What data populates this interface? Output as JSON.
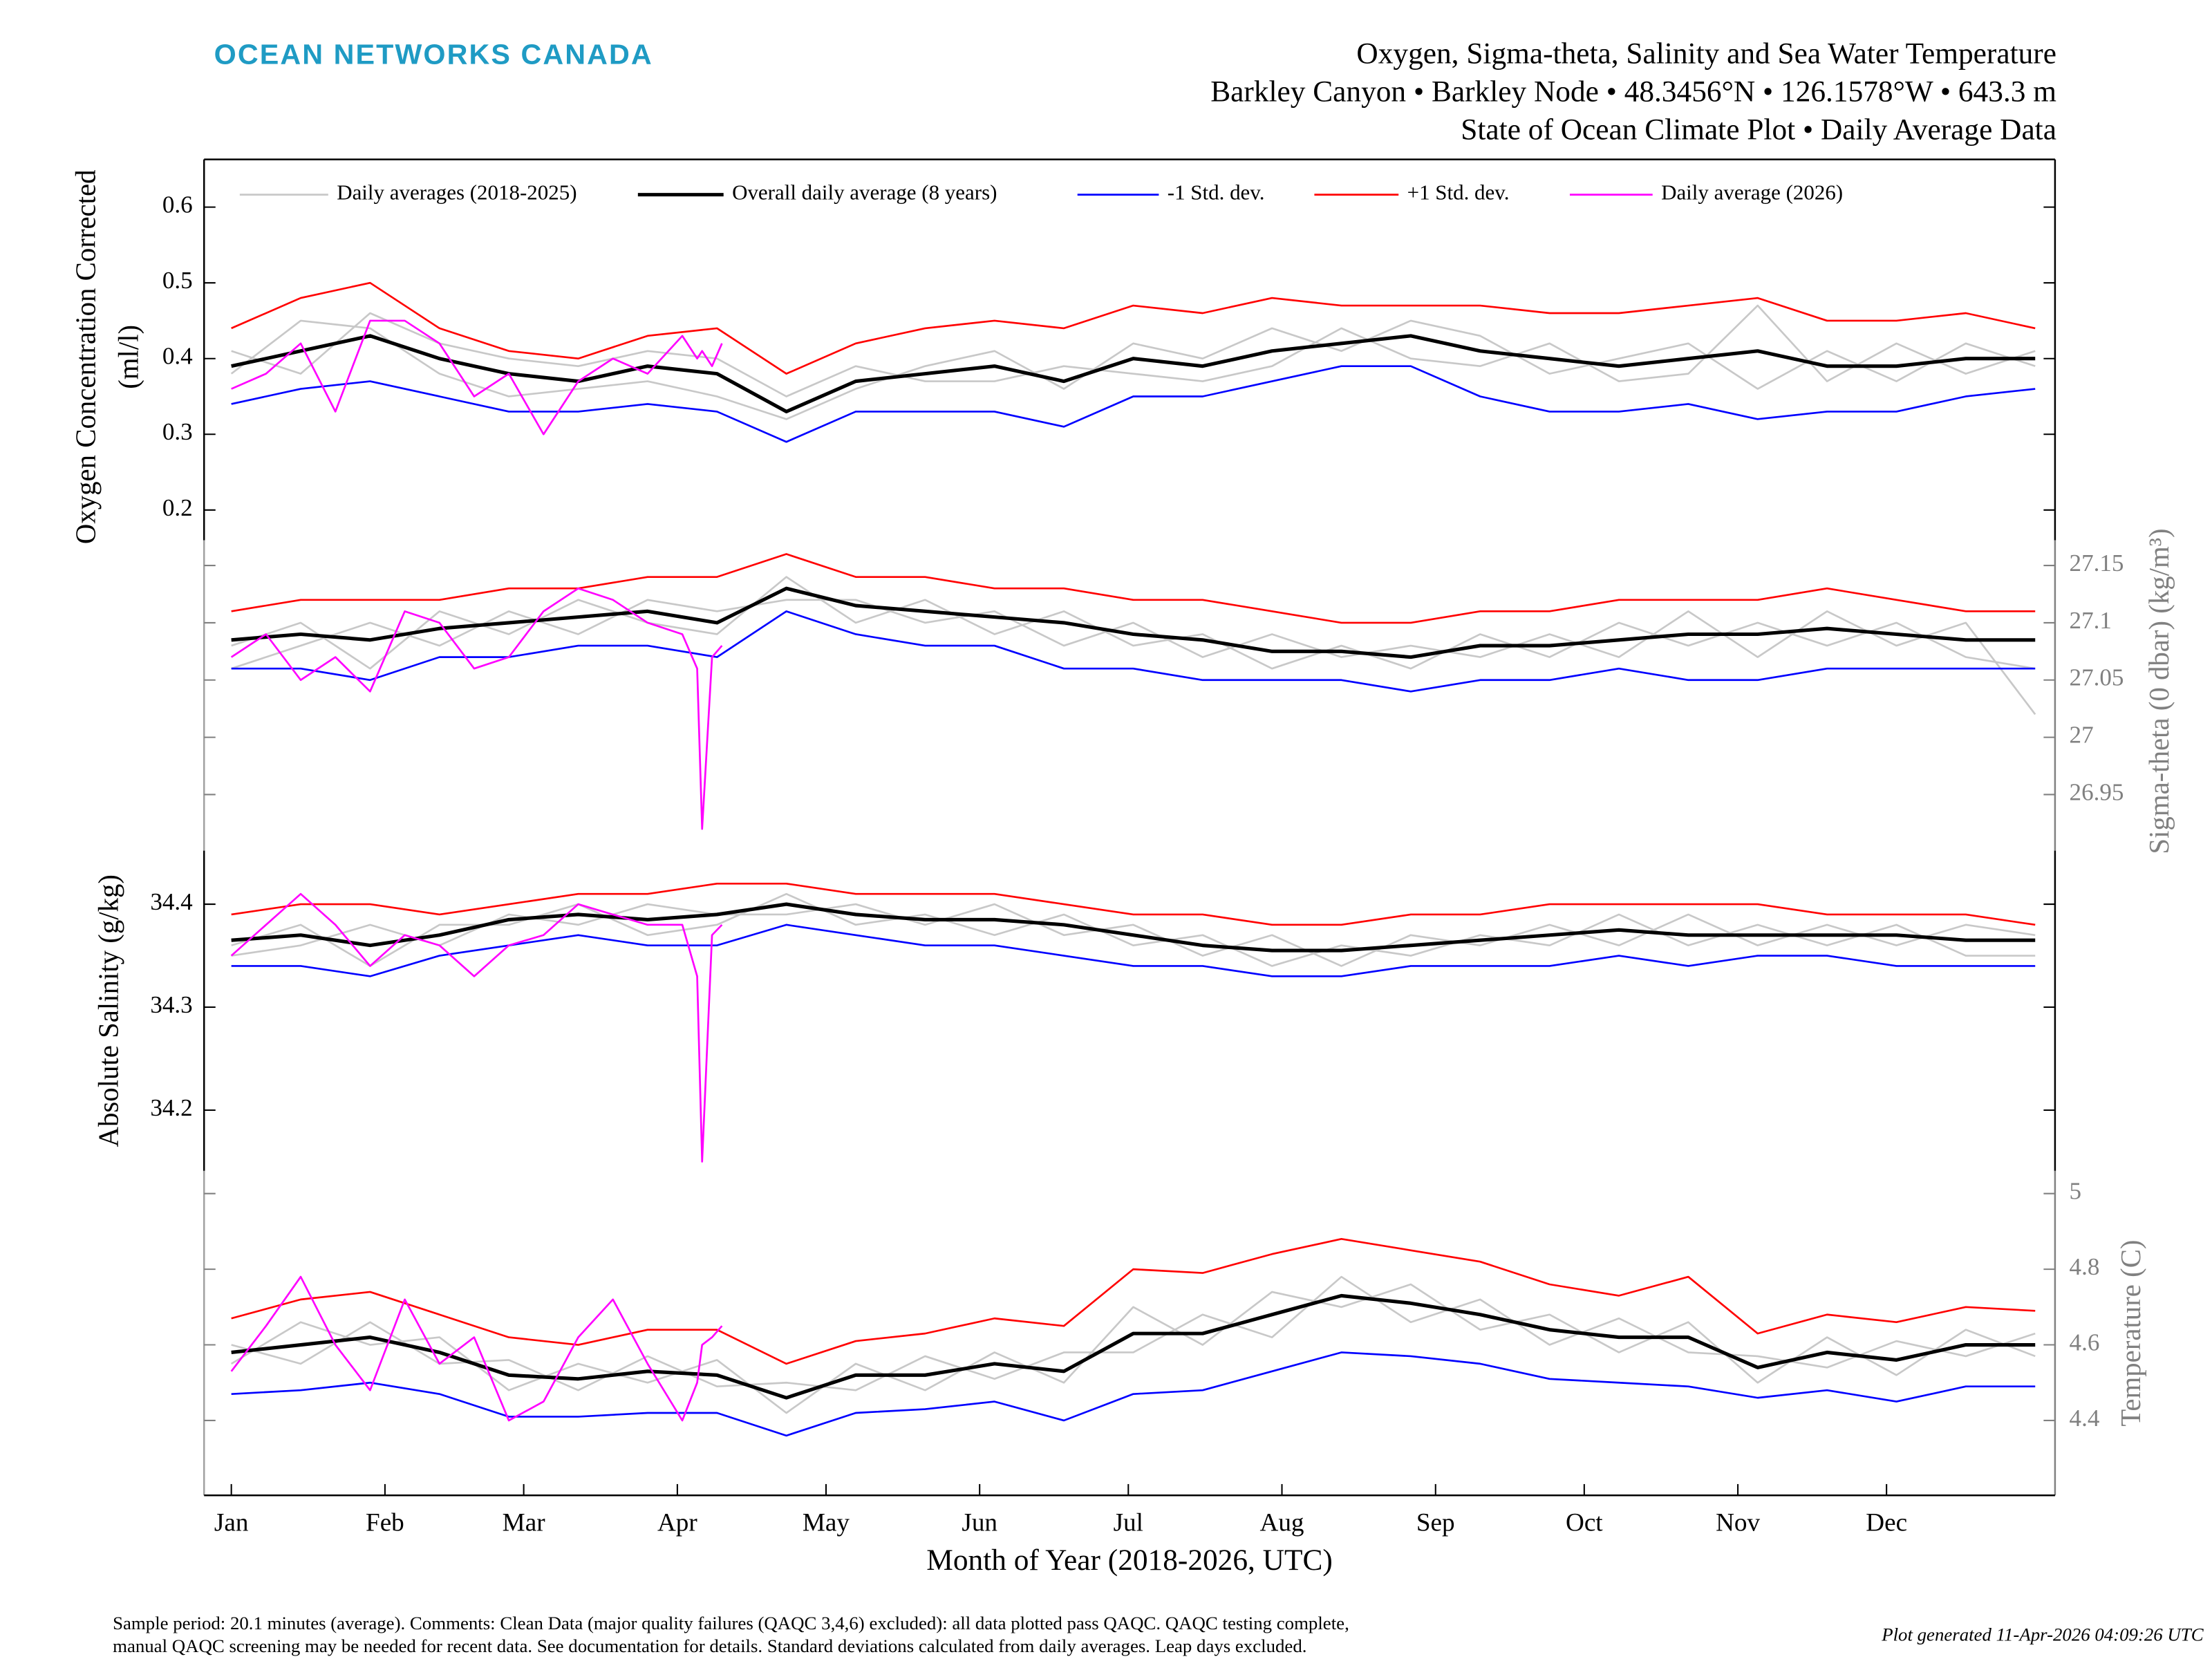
{
  "header": {
    "logo": "OCEAN NETWORKS CANADA",
    "title": "Oxygen, Sigma-theta, Salinity and Sea Water Temperature",
    "subtitle": "Barkley Canyon • Barkley Node • 48.3456°N • 126.1578°W • 643.3 m",
    "subtitle2": "State of Ocean Climate Plot • Daily Average Data"
  },
  "footer": {
    "note_line1": "Sample period: 20.1 minutes (average). Comments: Clean Data (major quality failures (QAQC 3,4,6) excluded): all data plotted pass QAQC. QAQC testing complete,",
    "note_line2": "manual QAQC screening may be needed for recent data. See documentation for details. Standard deviations calculated from daily averages. Leap days excluded.",
    "generated": "Plot generated 11-Apr-2026 04:09:26 UTC"
  },
  "chart_data": [
    {
      "type": "line",
      "ylabel": [
        "Oxygen Concentration Corrected",
        "(ml/l)"
      ],
      "axis_side": "left",
      "x": [
        1,
        15,
        29,
        43,
        57,
        71,
        85,
        99,
        113,
        127,
        141,
        155,
        169,
        183,
        197,
        211,
        225,
        239,
        253,
        267,
        281,
        295,
        309,
        323,
        337,
        351,
        365
      ],
      "xlim": [
        -4.5,
        369
      ],
      "ylim": [
        0.16,
        0.663
      ],
      "yticks": [
        0.2,
        0.3,
        0.4,
        0.5,
        0.6
      ],
      "series": [
        {
          "name": "Daily averages (2018-2025)",
          "color": "#c8c8c8",
          "values": [
            0.38,
            0.45,
            0.44,
            0.38,
            0.35,
            0.36,
            0.37,
            0.35,
            0.32,
            0.36,
            0.39,
            0.41,
            0.36,
            0.42,
            0.4,
            0.44,
            0.41,
            0.45,
            0.43,
            0.38,
            0.4,
            0.42,
            0.36,
            0.41,
            0.37,
            0.42,
            0.39
          ]
        },
        {
          "color": "#c8c8c8",
          "values": [
            0.41,
            0.38,
            0.46,
            0.42,
            0.4,
            0.39,
            0.41,
            0.4,
            0.35,
            0.39,
            0.37,
            0.37,
            0.39,
            0.38,
            0.37,
            0.39,
            0.44,
            0.4,
            0.39,
            0.42,
            0.37,
            0.38,
            0.47,
            0.37,
            0.42,
            0.38,
            0.41
          ]
        },
        {
          "name": "Overall daily average (8 years)",
          "color": "#000000",
          "width": 2.5,
          "values": [
            0.39,
            0.41,
            0.43,
            0.4,
            0.38,
            0.37,
            0.39,
            0.38,
            0.33,
            0.37,
            0.38,
            0.39,
            0.37,
            0.4,
            0.39,
            0.41,
            0.42,
            0.43,
            0.41,
            0.4,
            0.39,
            0.4,
            0.41,
            0.39,
            0.39,
            0.4,
            0.4
          ]
        },
        {
          "name": "-1 Std. dev.",
          "color": "#0000ff",
          "values": [
            0.34,
            0.36,
            0.37,
            0.35,
            0.33,
            0.33,
            0.34,
            0.33,
            0.29,
            0.33,
            0.33,
            0.33,
            0.31,
            0.35,
            0.35,
            0.37,
            0.39,
            0.39,
            0.35,
            0.33,
            0.33,
            0.34,
            0.32,
            0.33,
            0.33,
            0.35,
            0.36
          ]
        },
        {
          "name": "+1 Std. dev.",
          "color": "#ff0000",
          "values": [
            0.44,
            0.48,
            0.5,
            0.44,
            0.41,
            0.4,
            0.43,
            0.44,
            0.38,
            0.42,
            0.44,
            0.45,
            0.44,
            0.47,
            0.46,
            0.48,
            0.47,
            0.47,
            0.47,
            0.46,
            0.46,
            0.47,
            0.48,
            0.45,
            0.45,
            0.46,
            0.44
          ]
        },
        {
          "name": "Daily average (2026)",
          "color": "#ff00ff",
          "x": [
            1,
            8,
            15,
            22,
            29,
            36,
            43,
            50,
            57,
            64,
            71,
            78,
            85,
            92,
            95,
            96,
            98,
            100
          ],
          "values": [
            0.36,
            0.38,
            0.42,
            0.33,
            0.45,
            0.45,
            0.42,
            0.35,
            0.38,
            0.3,
            0.37,
            0.4,
            0.38,
            0.43,
            0.4,
            0.41,
            0.39,
            0.42
          ]
        }
      ]
    },
    {
      "type": "line",
      "ylabel": "Sigma-theta (0 dbar) (kg/m³)",
      "axis_side": "right",
      "x": [
        1,
        15,
        29,
        43,
        57,
        71,
        85,
        99,
        113,
        127,
        141,
        155,
        169,
        183,
        197,
        211,
        225,
        239,
        253,
        267,
        281,
        295,
        309,
        323,
        337,
        351,
        365
      ],
      "xlim": [
        -4.5,
        369
      ],
      "ylim": [
        26.901,
        27.172
      ],
      "yticks": [
        26.95,
        27,
        27.05,
        27.1,
        27.15
      ],
      "series": [
        {
          "color": "#c8c8c8",
          "values": [
            27.08,
            27.1,
            27.06,
            27.11,
            27.09,
            27.12,
            27.1,
            27.09,
            27.14,
            27.1,
            27.12,
            27.09,
            27.11,
            27.08,
            27.09,
            27.06,
            27.08,
            27.06,
            27.09,
            27.07,
            27.1,
            27.08,
            27.1,
            27.08,
            27.1,
            27.07,
            27.06
          ]
        },
        {
          "color": "#c8c8c8",
          "values": [
            27.06,
            27.08,
            27.1,
            27.08,
            27.11,
            27.09,
            27.12,
            27.11,
            27.12,
            27.12,
            27.1,
            27.11,
            27.08,
            27.1,
            27.07,
            27.09,
            27.07,
            27.08,
            27.07,
            27.09,
            27.07,
            27.11,
            27.07,
            27.11,
            27.08,
            27.1,
            27.02
          ]
        },
        {
          "color": "#000000",
          "width": 2.5,
          "values": [
            27.085,
            27.09,
            27.085,
            27.095,
            27.1,
            27.105,
            27.11,
            27.1,
            27.13,
            27.115,
            27.11,
            27.105,
            27.1,
            27.09,
            27.085,
            27.075,
            27.075,
            27.07,
            27.08,
            27.08,
            27.085,
            27.09,
            27.09,
            27.095,
            27.09,
            27.085,
            27.085
          ]
        },
        {
          "color": "#0000ff",
          "values": [
            27.06,
            27.06,
            27.05,
            27.07,
            27.07,
            27.08,
            27.08,
            27.07,
            27.11,
            27.09,
            27.08,
            27.08,
            27.06,
            27.06,
            27.05,
            27.05,
            27.05,
            27.04,
            27.05,
            27.05,
            27.06,
            27.05,
            27.05,
            27.06,
            27.06,
            27.06,
            27.06
          ]
        },
        {
          "color": "#ff0000",
          "values": [
            27.11,
            27.12,
            27.12,
            27.12,
            27.13,
            27.13,
            27.14,
            27.14,
            27.16,
            27.14,
            27.14,
            27.13,
            27.13,
            27.12,
            27.12,
            27.11,
            27.1,
            27.1,
            27.11,
            27.11,
            27.12,
            27.12,
            27.12,
            27.13,
            27.12,
            27.11,
            27.11
          ]
        },
        {
          "color": "#ff00ff",
          "x": [
            1,
            8,
            15,
            22,
            29,
            36,
            43,
            50,
            57,
            64,
            71,
            78,
            85,
            92,
            95,
            96,
            98,
            100
          ],
          "values": [
            27.07,
            27.09,
            27.05,
            27.07,
            27.04,
            27.11,
            27.1,
            27.06,
            27.07,
            27.11,
            27.13,
            27.12,
            27.1,
            27.09,
            27.06,
            26.92,
            27.07,
            27.08
          ]
        }
      ]
    },
    {
      "type": "line",
      "ylabel": "Absolute Salinity (g/kg)",
      "axis_side": "left",
      "x": [
        1,
        15,
        29,
        43,
        57,
        71,
        85,
        99,
        113,
        127,
        141,
        155,
        169,
        183,
        197,
        211,
        225,
        239,
        253,
        267,
        281,
        295,
        309,
        323,
        337,
        351,
        365
      ],
      "xlim": [
        -4.5,
        369
      ],
      "ylim": [
        34.141,
        34.452
      ],
      "yticks": [
        34.2,
        34.3,
        34.4
      ],
      "series": [
        {
          "color": "#c8c8c8",
          "values": [
            34.36,
            34.38,
            34.34,
            34.38,
            34.38,
            34.4,
            34.37,
            34.38,
            34.41,
            34.38,
            34.39,
            34.37,
            34.39,
            34.36,
            34.37,
            34.34,
            34.36,
            34.35,
            34.37,
            34.36,
            34.39,
            34.36,
            34.38,
            34.36,
            34.38,
            34.35,
            34.35
          ]
        },
        {
          "color": "#c8c8c8",
          "values": [
            34.35,
            34.36,
            34.38,
            34.36,
            34.39,
            34.38,
            34.4,
            34.39,
            34.39,
            34.4,
            34.38,
            34.4,
            34.37,
            34.38,
            34.35,
            34.37,
            34.34,
            34.37,
            34.36,
            34.38,
            34.36,
            34.39,
            34.36,
            34.38,
            34.36,
            34.38,
            34.37
          ]
        },
        {
          "color": "#000000",
          "width": 2.5,
          "values": [
            34.365,
            34.37,
            34.36,
            34.37,
            34.385,
            34.39,
            34.385,
            34.39,
            34.4,
            34.39,
            34.385,
            34.385,
            34.38,
            34.37,
            34.36,
            34.355,
            34.355,
            34.36,
            34.365,
            34.37,
            34.375,
            34.37,
            34.37,
            34.37,
            34.37,
            34.365,
            34.365
          ]
        },
        {
          "color": "#0000ff",
          "values": [
            34.34,
            34.34,
            34.33,
            34.35,
            34.36,
            34.37,
            34.36,
            34.36,
            34.38,
            34.37,
            34.36,
            34.36,
            34.35,
            34.34,
            34.34,
            34.33,
            34.33,
            34.34,
            34.34,
            34.34,
            34.35,
            34.34,
            34.35,
            34.35,
            34.34,
            34.34,
            34.34
          ]
        },
        {
          "color": "#ff0000",
          "values": [
            34.39,
            34.4,
            34.4,
            34.39,
            34.4,
            34.41,
            34.41,
            34.42,
            34.42,
            34.41,
            34.41,
            34.41,
            34.4,
            34.39,
            34.39,
            34.38,
            34.38,
            34.39,
            34.39,
            34.4,
            34.4,
            34.4,
            34.4,
            34.39,
            34.39,
            34.39,
            34.38
          ]
        },
        {
          "color": "#ff00ff",
          "x": [
            1,
            8,
            15,
            22,
            29,
            36,
            43,
            50,
            57,
            64,
            71,
            78,
            85,
            92,
            95,
            96,
            98,
            100
          ],
          "values": [
            34.35,
            34.38,
            34.41,
            34.38,
            34.34,
            34.37,
            34.36,
            34.33,
            34.36,
            34.37,
            34.4,
            34.39,
            34.38,
            34.38,
            34.33,
            34.15,
            34.37,
            34.38
          ]
        }
      ]
    },
    {
      "type": "line",
      "ylabel": "Temperature (C)",
      "axis_side": "right",
      "xlabel": "Month of Year (2018-2026, UTC)",
      "x": [
        1,
        15,
        29,
        43,
        57,
        71,
        85,
        99,
        113,
        127,
        141,
        155,
        169,
        183,
        197,
        211,
        225,
        239,
        253,
        267,
        281,
        295,
        309,
        323,
        337,
        351,
        365
      ],
      "xlim": [
        -4.5,
        369
      ],
      "ylim": [
        4.202,
        5.06
      ],
      "yticks": [
        4.4,
        4.6,
        4.8,
        5
      ],
      "xticks": [
        {
          "value": 1,
          "label": "Jan"
        },
        {
          "value": 32,
          "label": "Feb"
        },
        {
          "value": 60,
          "label": "Mar"
        },
        {
          "value": 91,
          "label": "Apr"
        },
        {
          "value": 121,
          "label": "May"
        },
        {
          "value": 152,
          "label": "Jun"
        },
        {
          "value": 182,
          "label": "Jul"
        },
        {
          "value": 213,
          "label": "Aug"
        },
        {
          "value": 244,
          "label": "Sep"
        },
        {
          "value": 274,
          "label": "Oct"
        },
        {
          "value": 305,
          "label": "Nov"
        },
        {
          "value": 335,
          "label": "Dec"
        }
      ],
      "series": [
        {
          "color": "#c8c8c8",
          "values": [
            4.55,
            4.66,
            4.6,
            4.62,
            4.48,
            4.55,
            4.5,
            4.56,
            4.42,
            4.55,
            4.48,
            4.58,
            4.5,
            4.7,
            4.6,
            4.74,
            4.7,
            4.76,
            4.64,
            4.68,
            4.58,
            4.66,
            4.5,
            4.62,
            4.52,
            4.64,
            4.57
          ]
        },
        {
          "color": "#c8c8c8",
          "values": [
            4.6,
            4.55,
            4.66,
            4.55,
            4.56,
            4.48,
            4.57,
            4.49,
            4.5,
            4.48,
            4.57,
            4.51,
            4.58,
            4.58,
            4.68,
            4.62,
            4.78,
            4.66,
            4.72,
            4.6,
            4.67,
            4.58,
            4.57,
            4.54,
            4.61,
            4.57,
            4.63
          ]
        },
        {
          "color": "#000000",
          "width": 2.5,
          "values": [
            4.58,
            4.6,
            4.62,
            4.58,
            4.52,
            4.51,
            4.53,
            4.52,
            4.46,
            4.52,
            4.52,
            4.55,
            4.53,
            4.63,
            4.63,
            4.68,
            4.73,
            4.71,
            4.68,
            4.64,
            4.62,
            4.62,
            4.54,
            4.58,
            4.56,
            4.6,
            4.6
          ]
        },
        {
          "color": "#0000ff",
          "values": [
            4.47,
            4.48,
            4.5,
            4.47,
            4.41,
            4.41,
            4.42,
            4.42,
            4.36,
            4.42,
            4.43,
            4.45,
            4.4,
            4.47,
            4.48,
            4.53,
            4.58,
            4.57,
            4.55,
            4.51,
            4.5,
            4.49,
            4.46,
            4.48,
            4.45,
            4.49,
            4.49
          ]
        },
        {
          "color": "#ff0000",
          "values": [
            4.67,
            4.72,
            4.74,
            4.68,
            4.62,
            4.6,
            4.64,
            4.64,
            4.55,
            4.61,
            4.63,
            4.67,
            4.65,
            4.8,
            4.79,
            4.84,
            4.88,
            4.85,
            4.82,
            4.76,
            4.73,
            4.78,
            4.63,
            4.68,
            4.66,
            4.7,
            4.69
          ]
        },
        {
          "color": "#ff00ff",
          "x": [
            1,
            8,
            15,
            22,
            29,
            36,
            43,
            50,
            57,
            64,
            71,
            78,
            85,
            92,
            95,
            96,
            98,
            100
          ],
          "values": [
            4.53,
            4.65,
            4.78,
            4.6,
            4.48,
            4.72,
            4.55,
            4.62,
            4.4,
            4.45,
            4.62,
            4.72,
            4.55,
            4.4,
            4.5,
            4.6,
            4.62,
            4.65
          ]
        }
      ]
    }
  ]
}
